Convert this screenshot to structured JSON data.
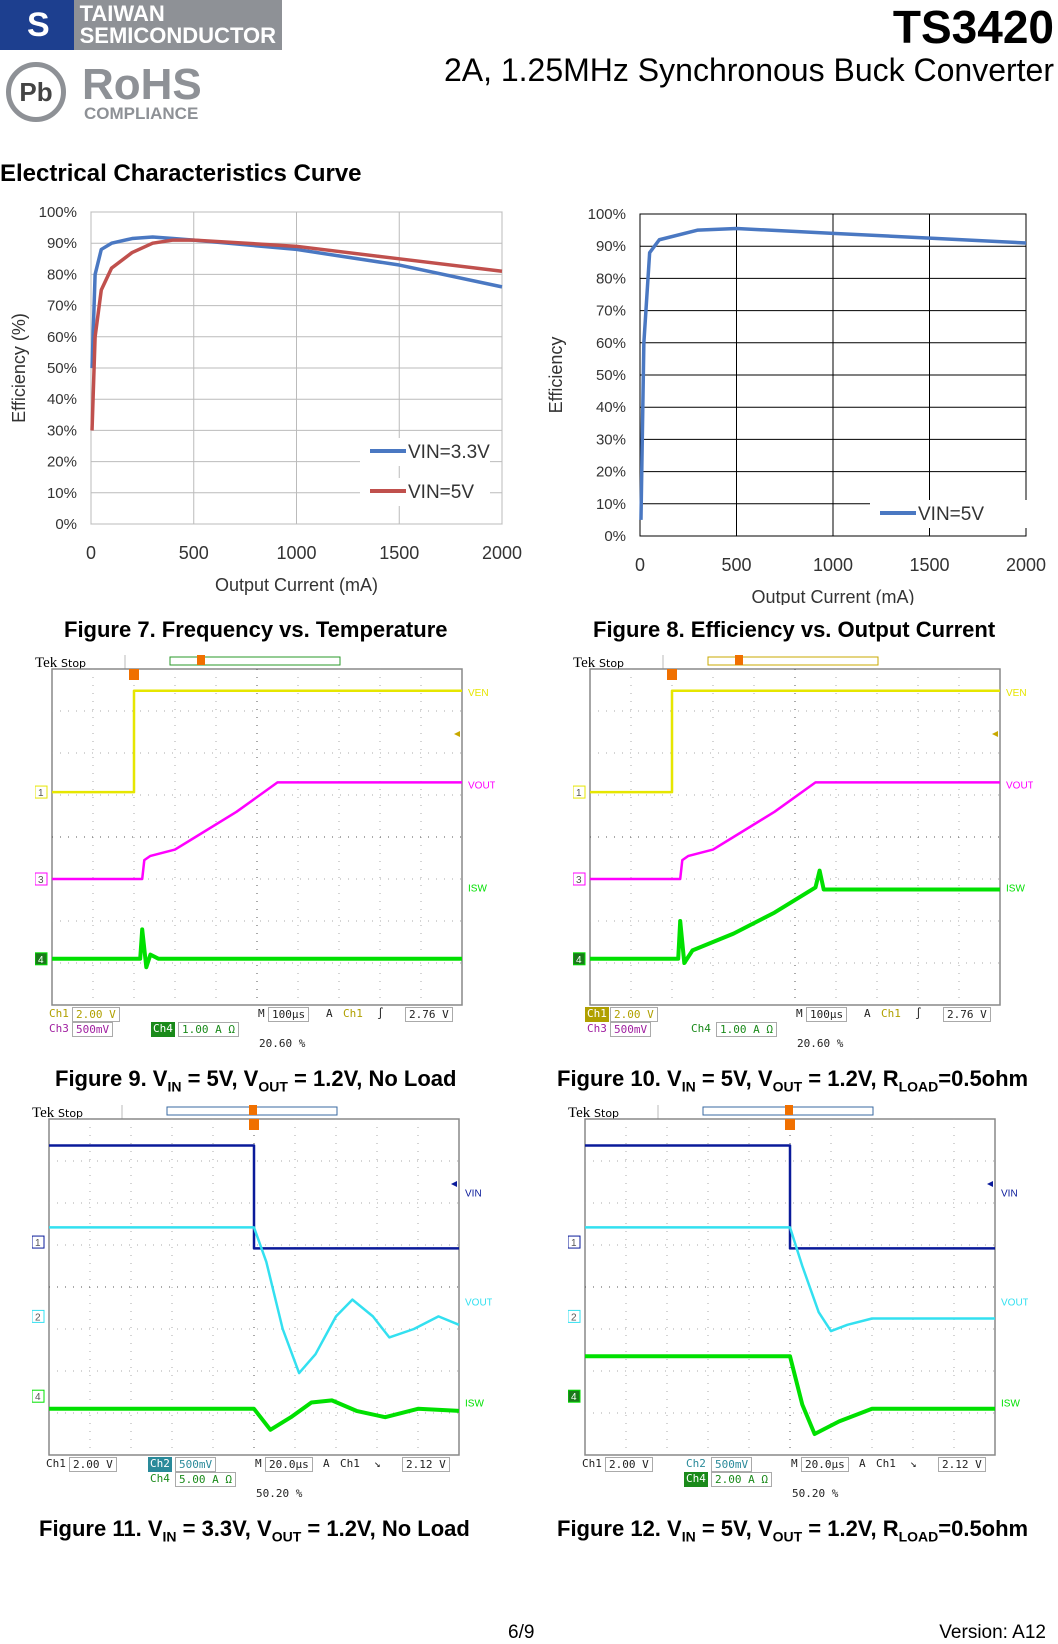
{
  "header": {
    "logo_mark": "S",
    "company_line1": "TAIWAN",
    "company_line2": "SEMICONDUCTOR",
    "pb": "Pb",
    "rohs": "RoHS",
    "compliance": "COMPLIANCE",
    "part": "TS3420",
    "subtitle": "2A, 1.25MHz Synchronous Buck Converter"
  },
  "section_title": "Electrical Characteristics Curve",
  "colors": {
    "blue": "#4a78c2",
    "red": "#c0504d",
    "yellow": "#e6e600",
    "magenta": "#ff00ff",
    "green": "#00e000",
    "navy": "#0a1a9a",
    "cyan": "#33e0f0"
  },
  "chart_data": [
    {
      "type": "line",
      "xlabel": "Output Current (mA)",
      "ylabel": "Efficiency (%)",
      "xlim": [
        0,
        2000
      ],
      "ylim": [
        0,
        100
      ],
      "xticks": [
        "0",
        "500",
        "1000",
        "1500",
        "2000"
      ],
      "yticks": [
        "0%",
        "10%",
        "20%",
        "30%",
        "40%",
        "50%",
        "60%",
        "70%",
        "80%",
        "90%",
        "100%"
      ],
      "grid": true,
      "legend": "bottom-right",
      "series": [
        {
          "name": "VIN=3.3V",
          "color": "#4a78c2",
          "x": [
            5,
            20,
            50,
            100,
            200,
            300,
            400,
            500,
            1000,
            1500,
            2000
          ],
          "y": [
            50,
            80,
            88,
            90,
            91.5,
            92,
            91.5,
            91,
            88,
            83,
            76
          ]
        },
        {
          "name": "VIN=5V",
          "color": "#c0504d",
          "x": [
            5,
            20,
            50,
            100,
            200,
            300,
            400,
            500,
            1000,
            1500,
            2000
          ],
          "y": [
            30,
            60,
            75,
            82,
            87,
            90,
            91,
            91,
            89,
            85,
            81
          ]
        }
      ]
    },
    {
      "type": "line",
      "xlabel": "Output Current (mA)",
      "ylabel": "Efficiency",
      "xlim": [
        0,
        2000
      ],
      "ylim": [
        0,
        100
      ],
      "xticks": [
        "0",
        "500",
        "1000",
        "1500",
        "2000"
      ],
      "yticks": [
        "0%",
        "10%",
        "20%",
        "30%",
        "40%",
        "50%",
        "60%",
        "70%",
        "80%",
        "90%",
        "100%"
      ],
      "grid": true,
      "legend": "bottom-right",
      "series": [
        {
          "name": "VIN=5V",
          "color": "#4a78c2",
          "x": [
            5,
            20,
            50,
            100,
            300,
            500,
            1000,
            1500,
            2000
          ],
          "y": [
            5,
            60,
            88,
            92,
            95,
            95.5,
            94,
            92.5,
            91
          ]
        }
      ]
    }
  ],
  "captions": {
    "fig7": "Figure 7. Frequency vs. Temperature",
    "fig8": "Figure 8. Efficiency vs. Output Current",
    "fig9": {
      "a": "Figure 9. V",
      "b": "IN",
      "c": " = 5V, V",
      "d": "OUT",
      "e": " = 1.2V, No Load"
    },
    "fig10": {
      "a": "Figure 10. V",
      "b": "IN",
      "c": " = 5V, V",
      "d": "OUT",
      "e": " = 1.2V, R",
      "f": "LOAD",
      "g": "=0.5ohm"
    },
    "fig11": {
      "a": "Figure 11. V",
      "b": "IN",
      "c": " = 3.3V, V",
      "d": "OUT",
      "e": " = 1.2V, No Load"
    },
    "fig12": {
      "a": "Figure 12. V",
      "b": "IN",
      "c": " = 5V, V",
      "d": "OUT",
      "e": " = 1.2V, R",
      "f": "LOAD",
      "g": "=0.5ohm"
    }
  },
  "scopes": [
    {
      "tek": "Tek",
      "state": "Stop",
      "bar_color": "#2a9a2a",
      "traces": [
        {
          "name": "VEN",
          "label": "VEN",
          "color": "#e6e600",
          "marker": "1",
          "ground": 2.93,
          "pts": [
            [
              0,
              2.93
            ],
            [
              2.0,
              2.93
            ],
            [
              2.0,
              0.52
            ],
            [
              10,
              0.52
            ]
          ]
        },
        {
          "name": "VOUT",
          "label": "VOUT",
          "color": "#ff00ff",
          "marker": "3",
          "ground": 5.0,
          "pts": [
            [
              0,
              5.0
            ],
            [
              2.2,
              5.0
            ],
            [
              2.25,
              4.55
            ],
            [
              2.4,
              4.45
            ],
            [
              3,
              4.3
            ],
            [
              3.5,
              4.0
            ],
            [
              4.5,
              3.4
            ],
            [
              5.5,
              2.7
            ],
            [
              10,
              2.7
            ]
          ]
        },
        {
          "name": "ISW",
          "label": "ISW",
          "color": "#00e000",
          "marker": "4",
          "ground": 6.9,
          "pts": [
            [
              0,
              6.9
            ],
            [
              2.15,
              6.9
            ],
            [
              2.2,
              6.2
            ],
            [
              2.3,
              7.1
            ],
            [
              2.4,
              6.8
            ],
            [
              2.6,
              6.9
            ],
            [
              10,
              6.9
            ]
          ]
        }
      ],
      "ro": {
        "ch1": "Ch1",
        "ch1v": "2.00 V",
        "ch3": "Ch3",
        "ch3v": "500mV",
        "ch4": "Ch4",
        "ch4v": "1.00 A Ω",
        "m": "M",
        "tb": "100µs",
        "a": "A",
        "trig": "Ch1",
        "slope": "∫",
        "lvl": "2.76 V",
        "tpos": "20.60 %"
      }
    },
    {
      "tek": "Tek",
      "state": "Stop",
      "bar_color": "#c8a800",
      "traces": [
        {
          "name": "VEN",
          "label": "VEN",
          "color": "#e6e600",
          "marker": "1",
          "ground": 2.93,
          "pts": [
            [
              0,
              2.93
            ],
            [
              2.0,
              2.93
            ],
            [
              2.0,
              0.52
            ],
            [
              10,
              0.52
            ]
          ]
        },
        {
          "name": "VOUT",
          "label": "VOUT",
          "color": "#ff00ff",
          "marker": "3",
          "ground": 5.0,
          "pts": [
            [
              0,
              5.0
            ],
            [
              2.2,
              5.0
            ],
            [
              2.25,
              4.55
            ],
            [
              2.4,
              4.45
            ],
            [
              3,
              4.3
            ],
            [
              3.5,
              4.0
            ],
            [
              4.5,
              3.4
            ],
            [
              5.5,
              2.7
            ],
            [
              10,
              2.7
            ]
          ]
        },
        {
          "name": "ISW",
          "label": "ISW",
          "color": "#00e000",
          "marker": "4",
          "ground": 6.9,
          "pts": [
            [
              0,
              6.9
            ],
            [
              2.15,
              6.9
            ],
            [
              2.2,
              6.0
            ],
            [
              2.3,
              7.0
            ],
            [
              2.5,
              6.7
            ],
            [
              3.5,
              6.3
            ],
            [
              4.5,
              5.8
            ],
            [
              5.5,
              5.2
            ],
            [
              5.6,
              4.8
            ],
            [
              5.7,
              5.25
            ],
            [
              10,
              5.25
            ]
          ]
        }
      ],
      "ro": {
        "ch1": "Ch1",
        "ch1v": "2.00 V",
        "ch3": "Ch3",
        "ch3v": "500mV",
        "ch4": "Ch4",
        "ch4v": "1.00 A Ω",
        "m": "M",
        "tb": "100µs",
        "a": "A",
        "trig": "Ch1",
        "slope": "∫",
        "lvl": "2.76 V",
        "tpos": "20.60 %"
      }
    },
    {
      "tek": "Tek",
      "state": "Stop",
      "bar_color": "#3a6aa0",
      "traces": [
        {
          "name": "VIN",
          "label": "VIN",
          "color": "#0a1a9a",
          "marker": "1",
          "ground": 3.6,
          "pts": [
            [
              0,
              0.63
            ],
            [
              5.0,
              0.63
            ],
            [
              5.0,
              3.08
            ],
            [
              10,
              3.08
            ]
          ]
        },
        {
          "name": "VOUT",
          "label": "VOUT",
          "color": "#33e0f0",
          "marker": "2",
          "ground": 4.9,
          "pts": [
            [
              0,
              2.58
            ],
            [
              5.0,
              2.58
            ],
            [
              5.3,
              3.4
            ],
            [
              5.7,
              5.0
            ],
            [
              6.1,
              6.05
            ],
            [
              6.5,
              5.6
            ],
            [
              7.0,
              4.7
            ],
            [
              7.4,
              4.3
            ],
            [
              7.9,
              4.7
            ],
            [
              8.3,
              5.2
            ],
            [
              8.9,
              5.0
            ],
            [
              9.5,
              4.7
            ],
            [
              10,
              4.9
            ]
          ]
        },
        {
          "name": "ISW",
          "label": "ISW",
          "color": "#00e000",
          "marker": "4",
          "ground": 6.9,
          "pts": [
            [
              0,
              6.9
            ],
            [
              5.0,
              6.9
            ],
            [
              5.4,
              7.4
            ],
            [
              5.9,
              7.1
            ],
            [
              6.4,
              6.75
            ],
            [
              6.9,
              6.7
            ],
            [
              7.5,
              6.95
            ],
            [
              8.2,
              7.1
            ],
            [
              9.0,
              6.9
            ],
            [
              10,
              6.95
            ]
          ]
        }
      ],
      "ro": {
        "ch1": "Ch1",
        "ch1v": "2.00 V",
        "ch2": "Ch2",
        "ch2v": "500mV",
        "ch4": "Ch4",
        "ch4v": "5.00 A Ω",
        "m": "M",
        "tb": "20.0µs",
        "a": "A",
        "trig": "Ch1",
        "slope": "↘",
        "lvl": "2.12 V",
        "tpos": "50.20 %"
      }
    },
    {
      "tek": "Tek",
      "state": "Stop",
      "bar_color": "#3a6aa0",
      "traces": [
        {
          "name": "VIN",
          "label": "VIN",
          "color": "#0a1a9a",
          "marker": "1",
          "ground": 3.6,
          "pts": [
            [
              0,
              0.63
            ],
            [
              5.0,
              0.63
            ],
            [
              5.0,
              3.08
            ],
            [
              10,
              3.08
            ]
          ]
        },
        {
          "name": "VOUT",
          "label": "VOUT",
          "color": "#33e0f0",
          "marker": "2",
          "ground": 4.9,
          "pts": [
            [
              0,
              2.58
            ],
            [
              5.0,
              2.58
            ],
            [
              5.3,
              3.5
            ],
            [
              5.7,
              4.6
            ],
            [
              6.0,
              5.05
            ],
            [
              6.4,
              4.9
            ],
            [
              7.0,
              4.75
            ],
            [
              10,
              4.75
            ]
          ]
        },
        {
          "name": "ISW",
          "label": "ISW",
          "color": "#00e000",
          "marker": "4",
          "ground": 6.9,
          "pts": [
            [
              0,
              5.65
            ],
            [
              5.0,
              5.65
            ],
            [
              5.3,
              6.8
            ],
            [
              5.6,
              7.5
            ],
            [
              6.2,
              7.2
            ],
            [
              7.0,
              6.9
            ],
            [
              10,
              6.9
            ]
          ]
        }
      ],
      "ro": {
        "ch1": "Ch1",
        "ch1v": "2.00 V",
        "ch2": "Ch2",
        "ch2v": "500mV",
        "ch4": "Ch4",
        "ch4v": "2.00 A Ω",
        "m": "M",
        "tb": "20.0µs",
        "a": "A",
        "trig": "Ch1",
        "slope": "↘",
        "lvl": "2.12 V",
        "tpos": "50.20 %"
      }
    }
  ],
  "footer": {
    "page": "6/9",
    "version": "Version: A12"
  }
}
